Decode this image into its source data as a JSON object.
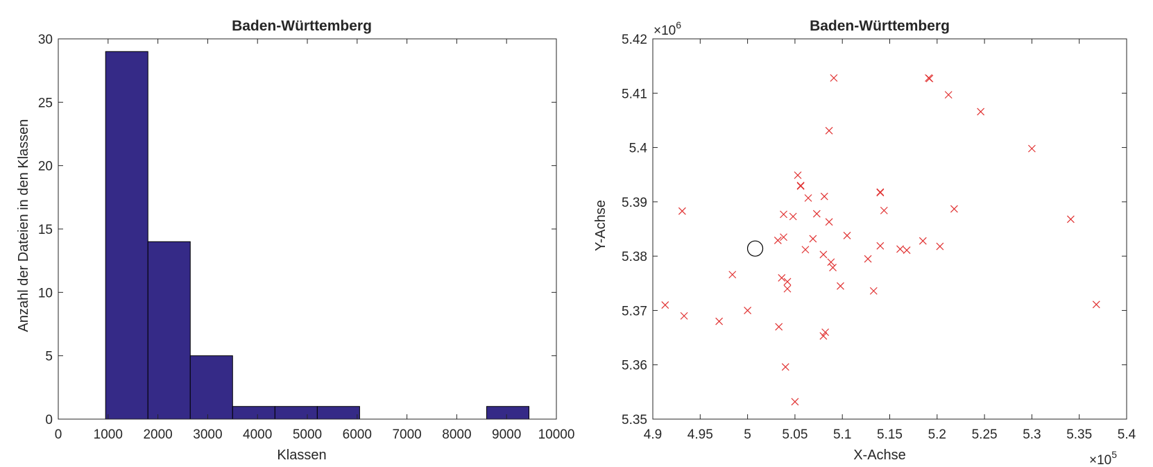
{
  "chart_data": [
    {
      "type": "bar",
      "subtype": "histogram",
      "title": "Baden-Württemberg",
      "xlabel": "Klassen",
      "ylabel": "Anzahl der Dateien in den Klassen",
      "xlim": [
        0,
        10000
      ],
      "ylim": [
        0,
        30
      ],
      "xticks": [
        "0",
        "1000",
        "2000",
        "3000",
        "4000",
        "5000",
        "6000",
        "7000",
        "8000",
        "9000",
        "10000"
      ],
      "yticks": [
        "0",
        "5",
        "10",
        "15",
        "20",
        "25",
        "30"
      ],
      "bar_color": "#352a87",
      "bins": [
        {
          "start": 950,
          "end": 1800,
          "count": 29
        },
        {
          "start": 1800,
          "end": 2650,
          "count": 14
        },
        {
          "start": 2650,
          "end": 3500,
          "count": 5
        },
        {
          "start": 3500,
          "end": 4350,
          "count": 1
        },
        {
          "start": 4350,
          "end": 5200,
          "count": 1
        },
        {
          "start": 5200,
          "end": 6050,
          "count": 1
        },
        {
          "start": 6050,
          "end": 6900,
          "count": 0
        },
        {
          "start": 6900,
          "end": 7750,
          "count": 0
        },
        {
          "start": 7750,
          "end": 8600,
          "count": 0
        },
        {
          "start": 8600,
          "end": 9450,
          "count": 1
        }
      ]
    },
    {
      "type": "scatter",
      "title": "Baden-Württemberg",
      "xlabel": "X-Achse",
      "ylabel": "Y-Achse",
      "xlim": [
        490000,
        540000
      ],
      "ylim": [
        5350000,
        5420000
      ],
      "xticks": [
        "4.9",
        "4.95",
        "5",
        "5.05",
        "5.1",
        "5.15",
        "5.2",
        "5.25",
        "5.3",
        "5.35",
        "5.4"
      ],
      "yticks": [
        "5.35",
        "5.36",
        "5.37",
        "5.38",
        "5.39",
        "5.4",
        "5.41",
        "5.42"
      ],
      "x_exponent_label": "×10",
      "x_exponent": "5",
      "y_exponent_label": "×10",
      "y_exponent": "6",
      "marker_color": "#e03030",
      "marker": "x",
      "points": [
        [
          491300,
          5371000
        ],
        [
          493100,
          5388300
        ],
        [
          493300,
          5369000
        ],
        [
          498400,
          5376600
        ],
        [
          497000,
          5368000
        ],
        [
          500000,
          5370000
        ],
        [
          503300,
          5367000
        ],
        [
          503200,
          5382900
        ],
        [
          503600,
          5376000
        ],
        [
          503800,
          5383500
        ],
        [
          503800,
          5387700
        ],
        [
          504000,
          5359600
        ],
        [
          504200,
          5375300
        ],
        [
          504200,
          5374000
        ],
        [
          504800,
          5387300
        ],
        [
          505000,
          5353200
        ],
        [
          505300,
          5394900
        ],
        [
          505600,
          5393000
        ],
        [
          505600,
          5392900
        ],
        [
          506100,
          5381200
        ],
        [
          506400,
          5390700
        ],
        [
          506900,
          5383200
        ],
        [
          507300,
          5387800
        ],
        [
          508000,
          5365300
        ],
        [
          508100,
          5391000
        ],
        [
          508000,
          5380300
        ],
        [
          508200,
          5366000
        ],
        [
          508600,
          5403100
        ],
        [
          508600,
          5386300
        ],
        [
          508800,
          5378900
        ],
        [
          509000,
          5377900
        ],
        [
          509100,
          5412800
        ],
        [
          509800,
          5374500
        ],
        [
          510500,
          5383800
        ],
        [
          512700,
          5379500
        ],
        [
          513300,
          5373600
        ],
        [
          514000,
          5391700
        ],
        [
          514000,
          5391800
        ],
        [
          514000,
          5381900
        ],
        [
          514400,
          5388400
        ],
        [
          516100,
          5381300
        ],
        [
          516800,
          5381100
        ],
        [
          518500,
          5382800
        ],
        [
          519100,
          5412800
        ],
        [
          519200,
          5412700
        ],
        [
          520300,
          5381800
        ],
        [
          521200,
          5409700
        ],
        [
          521800,
          5388700
        ],
        [
          524600,
          5406600
        ],
        [
          530000,
          5399800
        ],
        [
          534100,
          5386800
        ],
        [
          536800,
          5371100
        ]
      ],
      "highlight": {
        "marker": "circle",
        "x": 500800,
        "y": 5381400
      }
    }
  ]
}
